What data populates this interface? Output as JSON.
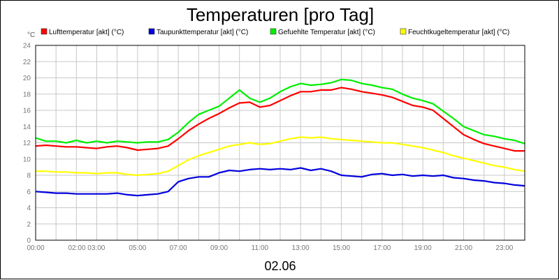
{
  "chart_data": {
    "type": "line",
    "title": "Temperaturen [pro Tag]",
    "xlabel": "02.06",
    "ylabel": "°C",
    "ylim": [
      0,
      24
    ],
    "y_ticks": [
      0,
      2,
      4,
      6,
      8,
      10,
      12,
      14,
      16,
      18,
      20,
      22,
      24
    ],
    "xlim": [
      0,
      24
    ],
    "x_tick_labels": [
      {
        "hour": 0,
        "label": "00:00"
      },
      {
        "hour": 2.5,
        "label": "02:00 03:00"
      },
      {
        "hour": 5,
        "label": "05:00"
      },
      {
        "hour": 7,
        "label": "07:00"
      },
      {
        "hour": 9,
        "label": "09:00"
      },
      {
        "hour": 11,
        "label": "11:00"
      },
      {
        "hour": 13,
        "label": "13:00"
      },
      {
        "hour": 15,
        "label": "15:00"
      },
      {
        "hour": 17,
        "label": "17:00"
      },
      {
        "hour": 19,
        "label": "19:00"
      },
      {
        "hour": 21,
        "label": "21:00"
      },
      {
        "hour": 23,
        "label": "23:00"
      }
    ],
    "grid": true,
    "legend_position": "top",
    "x": [
      0,
      0.5,
      1,
      1.5,
      2,
      2.5,
      3,
      3.5,
      4,
      4.5,
      5,
      5.5,
      6,
      6.5,
      7,
      7.5,
      8,
      8.5,
      9,
      9.5,
      10,
      10.5,
      11,
      11.5,
      12,
      12.5,
      13,
      13.5,
      14,
      14.5,
      15,
      15.5,
      16,
      16.5,
      17,
      17.5,
      18,
      18.5,
      19,
      19.5,
      20,
      20.5,
      21,
      21.5,
      22,
      22.5,
      23,
      23.5,
      24
    ],
    "series": [
      {
        "name": "Lufttemperatur [akt] (°C)",
        "color": "#ff0000",
        "values": [
          11.6,
          11.7,
          11.6,
          11.5,
          11.5,
          11.4,
          11.3,
          11.5,
          11.6,
          11.4,
          11.1,
          11.2,
          11.3,
          11.6,
          12.5,
          13.5,
          14.3,
          15.0,
          15.6,
          16.3,
          16.9,
          17.0,
          16.4,
          16.6,
          17.2,
          17.8,
          18.3,
          18.3,
          18.5,
          18.5,
          18.8,
          18.6,
          18.3,
          18.1,
          17.9,
          17.6,
          17.1,
          16.6,
          16.4,
          16.0,
          15.0,
          14.0,
          13.0,
          12.4,
          11.9,
          11.6,
          11.3,
          11.0,
          11.0
        ]
      },
      {
        "name": "Taupunkttemperatur [akt] (°C)",
        "color": "#0000dd",
        "values": [
          6.0,
          5.9,
          5.8,
          5.8,
          5.7,
          5.7,
          5.7,
          5.7,
          5.8,
          5.6,
          5.5,
          5.6,
          5.7,
          6.0,
          7.2,
          7.6,
          7.8,
          7.8,
          8.3,
          8.6,
          8.5,
          8.7,
          8.8,
          8.7,
          8.8,
          8.7,
          8.9,
          8.6,
          8.8,
          8.5,
          8.0,
          7.9,
          7.8,
          8.1,
          8.2,
          8.0,
          8.1,
          7.9,
          8.0,
          7.9,
          8.0,
          7.7,
          7.6,
          7.4,
          7.3,
          7.1,
          7.0,
          6.8,
          6.7
        ]
      },
      {
        "name": "Gefuehlte Temperatur [akt] (°C)",
        "color": "#00ee00",
        "values": [
          12.6,
          12.2,
          12.2,
          12.0,
          12.3,
          12.0,
          12.2,
          12.0,
          12.2,
          12.1,
          12.0,
          12.1,
          12.1,
          12.4,
          13.3,
          14.5,
          15.5,
          16.0,
          16.5,
          17.5,
          18.5,
          17.5,
          17.0,
          17.5,
          18.3,
          18.9,
          19.3,
          19.1,
          19.2,
          19.4,
          19.8,
          19.7,
          19.3,
          19.1,
          18.8,
          18.6,
          18.0,
          17.5,
          17.2,
          16.8,
          15.9,
          15.0,
          14.0,
          13.5,
          13.0,
          12.8,
          12.5,
          12.3,
          11.9
        ]
      },
      {
        "name": "Feuchtkugeltemperatur [akt] (°C)",
        "color": "#ffff00",
        "values": [
          8.5,
          8.5,
          8.4,
          8.4,
          8.3,
          8.3,
          8.2,
          8.3,
          8.3,
          8.1,
          8.0,
          8.1,
          8.2,
          8.5,
          9.2,
          9.9,
          10.4,
          10.8,
          11.2,
          11.6,
          11.8,
          12.0,
          11.8,
          11.9,
          12.2,
          12.5,
          12.7,
          12.6,
          12.7,
          12.5,
          12.4,
          12.3,
          12.2,
          12.1,
          12.0,
          12.0,
          11.8,
          11.6,
          11.4,
          11.1,
          10.8,
          10.4,
          10.1,
          9.8,
          9.5,
          9.2,
          9.0,
          8.7,
          8.5
        ]
      }
    ]
  }
}
